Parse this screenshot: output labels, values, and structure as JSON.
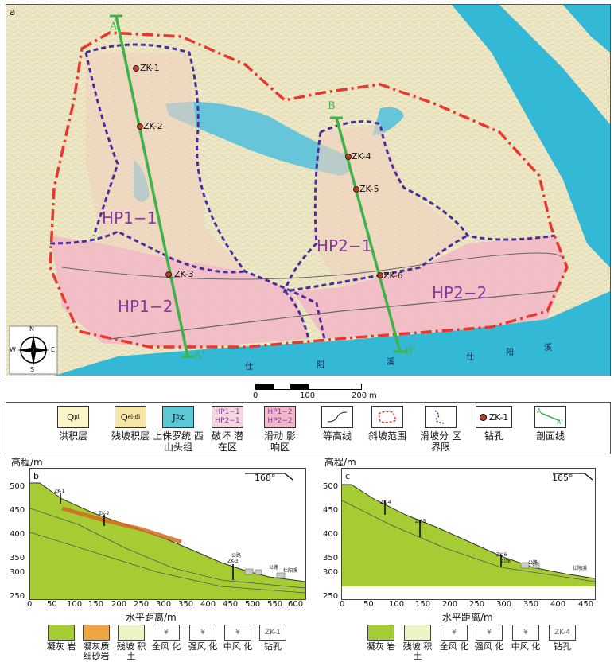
{
  "map": {
    "panel_letter": "a",
    "profile_lines": [
      {
        "start": "A",
        "end": "A'"
      },
      {
        "start": "B",
        "end": "B'"
      }
    ],
    "zone_labels": [
      "HP1−1",
      "HP1−2",
      "HP2−1",
      "HP2−2"
    ],
    "boreholes": [
      "ZK-1",
      "ZK-2",
      "ZK-3",
      "ZK-4",
      "ZK-5",
      "ZK-6"
    ],
    "river_labels": [
      "仕",
      "阳",
      "溪",
      "仕",
      "阳",
      "溪"
    ],
    "compass": {
      "n": "N",
      "s": "S",
      "e": "E",
      "w": "W"
    },
    "scale": {
      "ticks": [
        "0",
        "100",
        "200"
      ],
      "unit": "m"
    }
  },
  "legend": [
    {
      "symbol": "Qpl",
      "caption": "洪积层"
    },
    {
      "symbol": "Qel-dl",
      "caption": "残坡积层"
    },
    {
      "symbol": "J3x",
      "caption": "上侏罗统 西山头组"
    },
    {
      "symbol": "HP1−1\nHP2−1",
      "caption": "破坏 潜在区"
    },
    {
      "symbol": "HP1−2\nHP2−2",
      "caption": "滑动 影响区"
    },
    {
      "symbol": "contour",
      "caption": "等高线"
    },
    {
      "symbol": "slope-boundary",
      "caption": "斜坡范围"
    },
    {
      "symbol": "zone-boundary",
      "caption": "滑坡分 区界限"
    },
    {
      "symbol": "ZK-1",
      "caption": "钻孔"
    },
    {
      "symbol": "section",
      "caption": "剖面线",
      "label_a": "A",
      "label_b": "A'"
    }
  ],
  "profile_b": {
    "letter": "b",
    "ylabel": "高程/m",
    "xlabel": "水平距离/m",
    "direction": "168°",
    "y_ticks": [
      "500",
      "450",
      "400",
      "350",
      "300",
      "250"
    ],
    "x_ticks": [
      "0",
      "50",
      "100",
      "150",
      "200",
      "250",
      "300",
      "350",
      "400",
      "450",
      "500",
      "550",
      "600"
    ],
    "labels": [
      "ZK-1",
      "ZK-2",
      "ZK-3",
      "公路",
      "公路",
      "仕阳溪"
    ]
  },
  "profile_c": {
    "letter": "c",
    "ylabel": "高程/m",
    "xlabel": "水平距离/m",
    "direction": "165°",
    "y_ticks": [
      "500",
      "450",
      "400",
      "350",
      "300",
      "250"
    ],
    "x_ticks": [
      "0",
      "50",
      "100",
      "150",
      "200",
      "250",
      "300",
      "350",
      "400",
      "450"
    ],
    "labels": [
      "ZK-4",
      "ZK-5",
      "ZK-6",
      "公路",
      "公路",
      "仕阳溪"
    ]
  },
  "bottom_legend_b": [
    {
      "caption": "凝灰 岩"
    },
    {
      "caption": "凝灰质 细砂岩"
    },
    {
      "caption": "残坡 积土"
    },
    {
      "caption": "全风 化"
    },
    {
      "caption": "强风 化"
    },
    {
      "caption": "中风 化"
    },
    {
      "caption": "钻孔"
    }
  ],
  "bottom_legend_c": [
    {
      "caption": "凝灰 岩"
    },
    {
      "caption": "残坡 积土"
    },
    {
      "caption": "全风 化"
    },
    {
      "caption": "强风 化"
    },
    {
      "caption": "中风 化"
    },
    {
      "caption": "钻孔"
    }
  ],
  "colors": {
    "base": "#efe9c6",
    "river": "#33b8d6",
    "pink": "#f2b7c8",
    "red": "#e8372e",
    "purple": "#4a2e9c",
    "green": "#3fb34a",
    "tuff": "#a5cc32"
  }
}
